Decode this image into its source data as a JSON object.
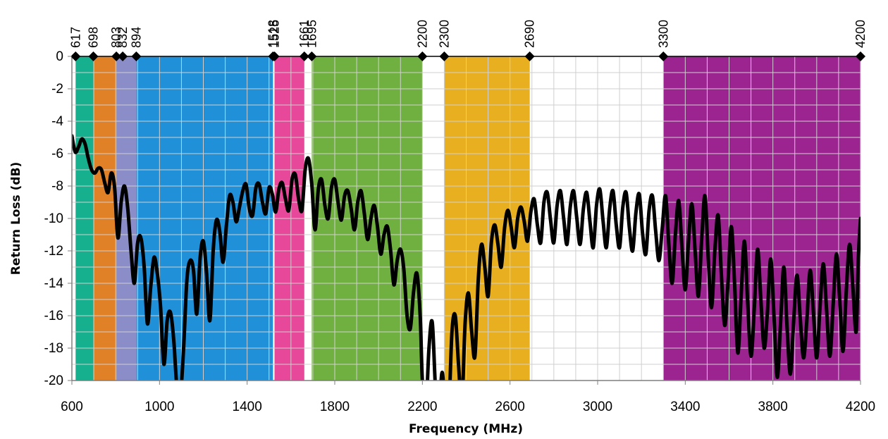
{
  "chart_data": {
    "type": "line",
    "xlabel": "Frequency (MHz)",
    "ylabel": "Return Loss (dB)",
    "xlim": [
      600,
      4200
    ],
    "ylim": [
      -20,
      0
    ],
    "x_ticks": [
      "600",
      "1000",
      "1400",
      "1800",
      "2200",
      "2600",
      "3000",
      "3400",
      "3800",
      "4200"
    ],
    "y_ticks": [
      "0",
      "-2",
      "-4",
      "-6",
      "-8",
      "-10",
      "-12",
      "-14",
      "-16",
      "-18",
      "-20"
    ],
    "x_tick_values": [
      600,
      1000,
      1400,
      1800,
      2200,
      2600,
      3000,
      3400,
      3800,
      4200
    ],
    "y_tick_values": [
      0,
      -2,
      -4,
      -6,
      -8,
      -10,
      -12,
      -14,
      -16,
      -18,
      -20
    ],
    "grid": true,
    "marker_frequencies": [
      "617",
      "698",
      "803",
      "832",
      "894",
      "1518",
      "1525",
      "1661",
      "1695",
      "2200",
      "2300",
      "2690",
      "3300",
      "4200"
    ],
    "bands": [
      {
        "from": 617,
        "to": 698,
        "color": "#17b08e"
      },
      {
        "from": 698,
        "to": 803,
        "color": "#e08128"
      },
      {
        "from": 803,
        "to": 894,
        "color": "#8b8dc8"
      },
      {
        "from": 894,
        "to": 1518,
        "color": "#2090d8"
      },
      {
        "from": 1525,
        "to": 1661,
        "color": "#e8489a"
      },
      {
        "from": 1695,
        "to": 2200,
        "color": "#70b040"
      },
      {
        "from": 2300,
        "to": 2690,
        "color": "#e8b020"
      },
      {
        "from": 3300,
        "to": 4200,
        "color": "#9b2490"
      }
    ],
    "series": [
      {
        "line_color": "#000000",
        "points": [
          [
            600,
            -4.9
          ],
          [
            615,
            -5.9
          ],
          [
            630,
            -5.6
          ],
          [
            645,
            -5.1
          ],
          [
            660,
            -5.4
          ],
          [
            675,
            -6.3
          ],
          [
            690,
            -7.0
          ],
          [
            705,
            -7.2
          ],
          [
            720,
            -6.9
          ],
          [
            735,
            -7.0
          ],
          [
            750,
            -7.8
          ],
          [
            765,
            -8.4
          ],
          [
            780,
            -7.2
          ],
          [
            795,
            -8.1
          ],
          [
            810,
            -11.2
          ],
          [
            825,
            -9.0
          ],
          [
            840,
            -8.0
          ],
          [
            855,
            -9.4
          ],
          [
            870,
            -12.0
          ],
          [
            885,
            -14.0
          ],
          [
            900,
            -11.5
          ],
          [
            915,
            -11.2
          ],
          [
            930,
            -13.0
          ],
          [
            945,
            -16.5
          ],
          [
            960,
            -14.2
          ],
          [
            975,
            -12.4
          ],
          [
            990,
            -13.4
          ],
          [
            1005,
            -15.5
          ],
          [
            1020,
            -19.0
          ],
          [
            1035,
            -16.3
          ],
          [
            1050,
            -15.8
          ],
          [
            1065,
            -17.5
          ],
          [
            1080,
            -20.5
          ],
          [
            1095,
            -21.0
          ],
          [
            1110,
            -18.0
          ],
          [
            1125,
            -13.8
          ],
          [
            1140,
            -12.6
          ],
          [
            1155,
            -13.2
          ],
          [
            1170,
            -15.9
          ],
          [
            1185,
            -12.5
          ],
          [
            1200,
            -11.4
          ],
          [
            1215,
            -13.4
          ],
          [
            1230,
            -16.3
          ],
          [
            1245,
            -12.0
          ],
          [
            1260,
            -10.1
          ],
          [
            1275,
            -10.8
          ],
          [
            1290,
            -12.7
          ],
          [
            1305,
            -10.5
          ],
          [
            1320,
            -8.6
          ],
          [
            1335,
            -9.0
          ],
          [
            1350,
            -10.2
          ],
          [
            1365,
            -9.3
          ],
          [
            1380,
            -8.3
          ],
          [
            1395,
            -7.9
          ],
          [
            1410,
            -9.4
          ],
          [
            1425,
            -9.8
          ],
          [
            1440,
            -8.1
          ],
          [
            1455,
            -7.9
          ],
          [
            1470,
            -9.0
          ],
          [
            1485,
            -9.7
          ],
          [
            1500,
            -8.1
          ],
          [
            1515,
            -8.5
          ],
          [
            1530,
            -9.6
          ],
          [
            1545,
            -8.2
          ],
          [
            1560,
            -7.8
          ],
          [
            1575,
            -8.8
          ],
          [
            1590,
            -9.5
          ],
          [
            1605,
            -7.6
          ],
          [
            1620,
            -7.3
          ],
          [
            1635,
            -8.8
          ],
          [
            1650,
            -9.5
          ],
          [
            1665,
            -7.0
          ],
          [
            1680,
            -6.3
          ],
          [
            1695,
            -7.9
          ],
          [
            1710,
            -10.7
          ],
          [
            1725,
            -8.2
          ],
          [
            1740,
            -7.6
          ],
          [
            1755,
            -9.2
          ],
          [
            1770,
            -10.0
          ],
          [
            1785,
            -8.1
          ],
          [
            1800,
            -7.6
          ],
          [
            1815,
            -9.0
          ],
          [
            1830,
            -10.1
          ],
          [
            1845,
            -8.6
          ],
          [
            1860,
            -8.3
          ],
          [
            1875,
            -9.4
          ],
          [
            1890,
            -10.7
          ],
          [
            1905,
            -9.0
          ],
          [
            1920,
            -8.3
          ],
          [
            1935,
            -9.7
          ],
          [
            1950,
            -11.3
          ],
          [
            1965,
            -10.0
          ],
          [
            1980,
            -9.2
          ],
          [
            1995,
            -10.5
          ],
          [
            2010,
            -12.2
          ],
          [
            2025,
            -11.0
          ],
          [
            2040,
            -10.5
          ],
          [
            2055,
            -12.0
          ],
          [
            2070,
            -14.1
          ],
          [
            2085,
            -12.6
          ],
          [
            2100,
            -11.9
          ],
          [
            2115,
            -13.1
          ],
          [
            2130,
            -16.0
          ],
          [
            2145,
            -16.8
          ],
          [
            2160,
            -14.5
          ],
          [
            2175,
            -13.4
          ],
          [
            2190,
            -16.0
          ],
          [
            2200,
            -20.0
          ],
          [
            2215,
            -22.0
          ],
          [
            2230,
            -18.0
          ],
          [
            2245,
            -16.4
          ],
          [
            2260,
            -20.5
          ],
          [
            2275,
            -22.0
          ],
          [
            2290,
            -19.5
          ],
          [
            2305,
            -21.8
          ],
          [
            2320,
            -22.0
          ],
          [
            2335,
            -17.0
          ],
          [
            2350,
            -16.0
          ],
          [
            2365,
            -19.0
          ],
          [
            2380,
            -21.5
          ],
          [
            2395,
            -16.5
          ],
          [
            2410,
            -14.6
          ],
          [
            2425,
            -17.0
          ],
          [
            2440,
            -18.5
          ],
          [
            2455,
            -13.8
          ],
          [
            2470,
            -11.6
          ],
          [
            2485,
            -13.0
          ],
          [
            2500,
            -14.8
          ],
          [
            2515,
            -11.5
          ],
          [
            2530,
            -10.4
          ],
          [
            2545,
            -11.6
          ],
          [
            2560,
            -13.0
          ],
          [
            2575,
            -10.6
          ],
          [
            2590,
            -9.5
          ],
          [
            2605,
            -10.5
          ],
          [
            2620,
            -11.8
          ],
          [
            2635,
            -10.0
          ],
          [
            2650,
            -9.3
          ],
          [
            2665,
            -10.2
          ],
          [
            2680,
            -11.4
          ],
          [
            2695,
            -9.6
          ],
          [
            2710,
            -8.8
          ],
          [
            2725,
            -10.4
          ],
          [
            2740,
            -11.5
          ],
          [
            2755,
            -9.0
          ],
          [
            2770,
            -8.4
          ],
          [
            2785,
            -10.1
          ],
          [
            2800,
            -11.5
          ],
          [
            2815,
            -9.2
          ],
          [
            2830,
            -8.3
          ],
          [
            2845,
            -10.0
          ],
          [
            2860,
            -11.6
          ],
          [
            2875,
            -9.3
          ],
          [
            2890,
            -8.3
          ],
          [
            2905,
            -10.0
          ],
          [
            2920,
            -11.6
          ],
          [
            2935,
            -9.4
          ],
          [
            2950,
            -8.4
          ],
          [
            2965,
            -10.2
          ],
          [
            2980,
            -11.8
          ],
          [
            2995,
            -9.2
          ],
          [
            3010,
            -8.2
          ],
          [
            3025,
            -10.2
          ],
          [
            3040,
            -11.8
          ],
          [
            3055,
            -9.4
          ],
          [
            3070,
            -8.3
          ],
          [
            3085,
            -10.4
          ],
          [
            3100,
            -11.8
          ],
          [
            3115,
            -9.3
          ],
          [
            3130,
            -8.4
          ],
          [
            3145,
            -10.6
          ],
          [
            3160,
            -12.0
          ],
          [
            3175,
            -9.6
          ],
          [
            3190,
            -8.5
          ],
          [
            3205,
            -10.9
          ],
          [
            3220,
            -12.2
          ],
          [
            3235,
            -9.5
          ],
          [
            3250,
            -8.6
          ],
          [
            3265,
            -10.8
          ],
          [
            3280,
            -12.6
          ],
          [
            3295,
            -10.6
          ],
          [
            3310,
            -8.6
          ],
          [
            3325,
            -11.6
          ],
          [
            3340,
            -14.0
          ],
          [
            3355,
            -11.0
          ],
          [
            3370,
            -8.9
          ],
          [
            3385,
            -11.8
          ],
          [
            3400,
            -14.4
          ],
          [
            3415,
            -11.4
          ],
          [
            3430,
            -9.1
          ],
          [
            3445,
            -12.0
          ],
          [
            3460,
            -14.8
          ],
          [
            3475,
            -11.3
          ],
          [
            3490,
            -8.6
          ],
          [
            3505,
            -12.5
          ],
          [
            3520,
            -15.5
          ],
          [
            3535,
            -12.0
          ],
          [
            3550,
            -9.8
          ],
          [
            3565,
            -13.5
          ],
          [
            3580,
            -16.6
          ],
          [
            3595,
            -14.0
          ],
          [
            3610,
            -10.5
          ],
          [
            3625,
            -14.0
          ],
          [
            3640,
            -18.3
          ],
          [
            3655,
            -14.8
          ],
          [
            3670,
            -11.4
          ],
          [
            3685,
            -15.2
          ],
          [
            3700,
            -18.5
          ],
          [
            3715,
            -15.6
          ],
          [
            3730,
            -11.9
          ],
          [
            3745,
            -15.0
          ],
          [
            3760,
            -18.0
          ],
          [
            3775,
            -15.8
          ],
          [
            3790,
            -12.5
          ],
          [
            3805,
            -16.0
          ],
          [
            3820,
            -19.8
          ],
          [
            3835,
            -16.5
          ],
          [
            3850,
            -13.0
          ],
          [
            3865,
            -16.8
          ],
          [
            3880,
            -19.6
          ],
          [
            3895,
            -16.3
          ],
          [
            3910,
            -13.5
          ],
          [
            3925,
            -16.2
          ],
          [
            3940,
            -18.6
          ],
          [
            3955,
            -16.3
          ],
          [
            3970,
            -13.2
          ],
          [
            3985,
            -15.8
          ],
          [
            4000,
            -18.6
          ],
          [
            4015,
            -15.5
          ],
          [
            4030,
            -12.8
          ],
          [
            4045,
            -15.6
          ],
          [
            4060,
            -18.5
          ],
          [
            4075,
            -15.4
          ],
          [
            4090,
            -12.2
          ],
          [
            4105,
            -15.0
          ],
          [
            4120,
            -18.2
          ],
          [
            4135,
            -14.5
          ],
          [
            4150,
            -11.6
          ],
          [
            4165,
            -14.2
          ],
          [
            4180,
            -17.0
          ],
          [
            4190,
            -12.5
          ],
          [
            4200,
            -10.0
          ]
        ]
      }
    ]
  }
}
